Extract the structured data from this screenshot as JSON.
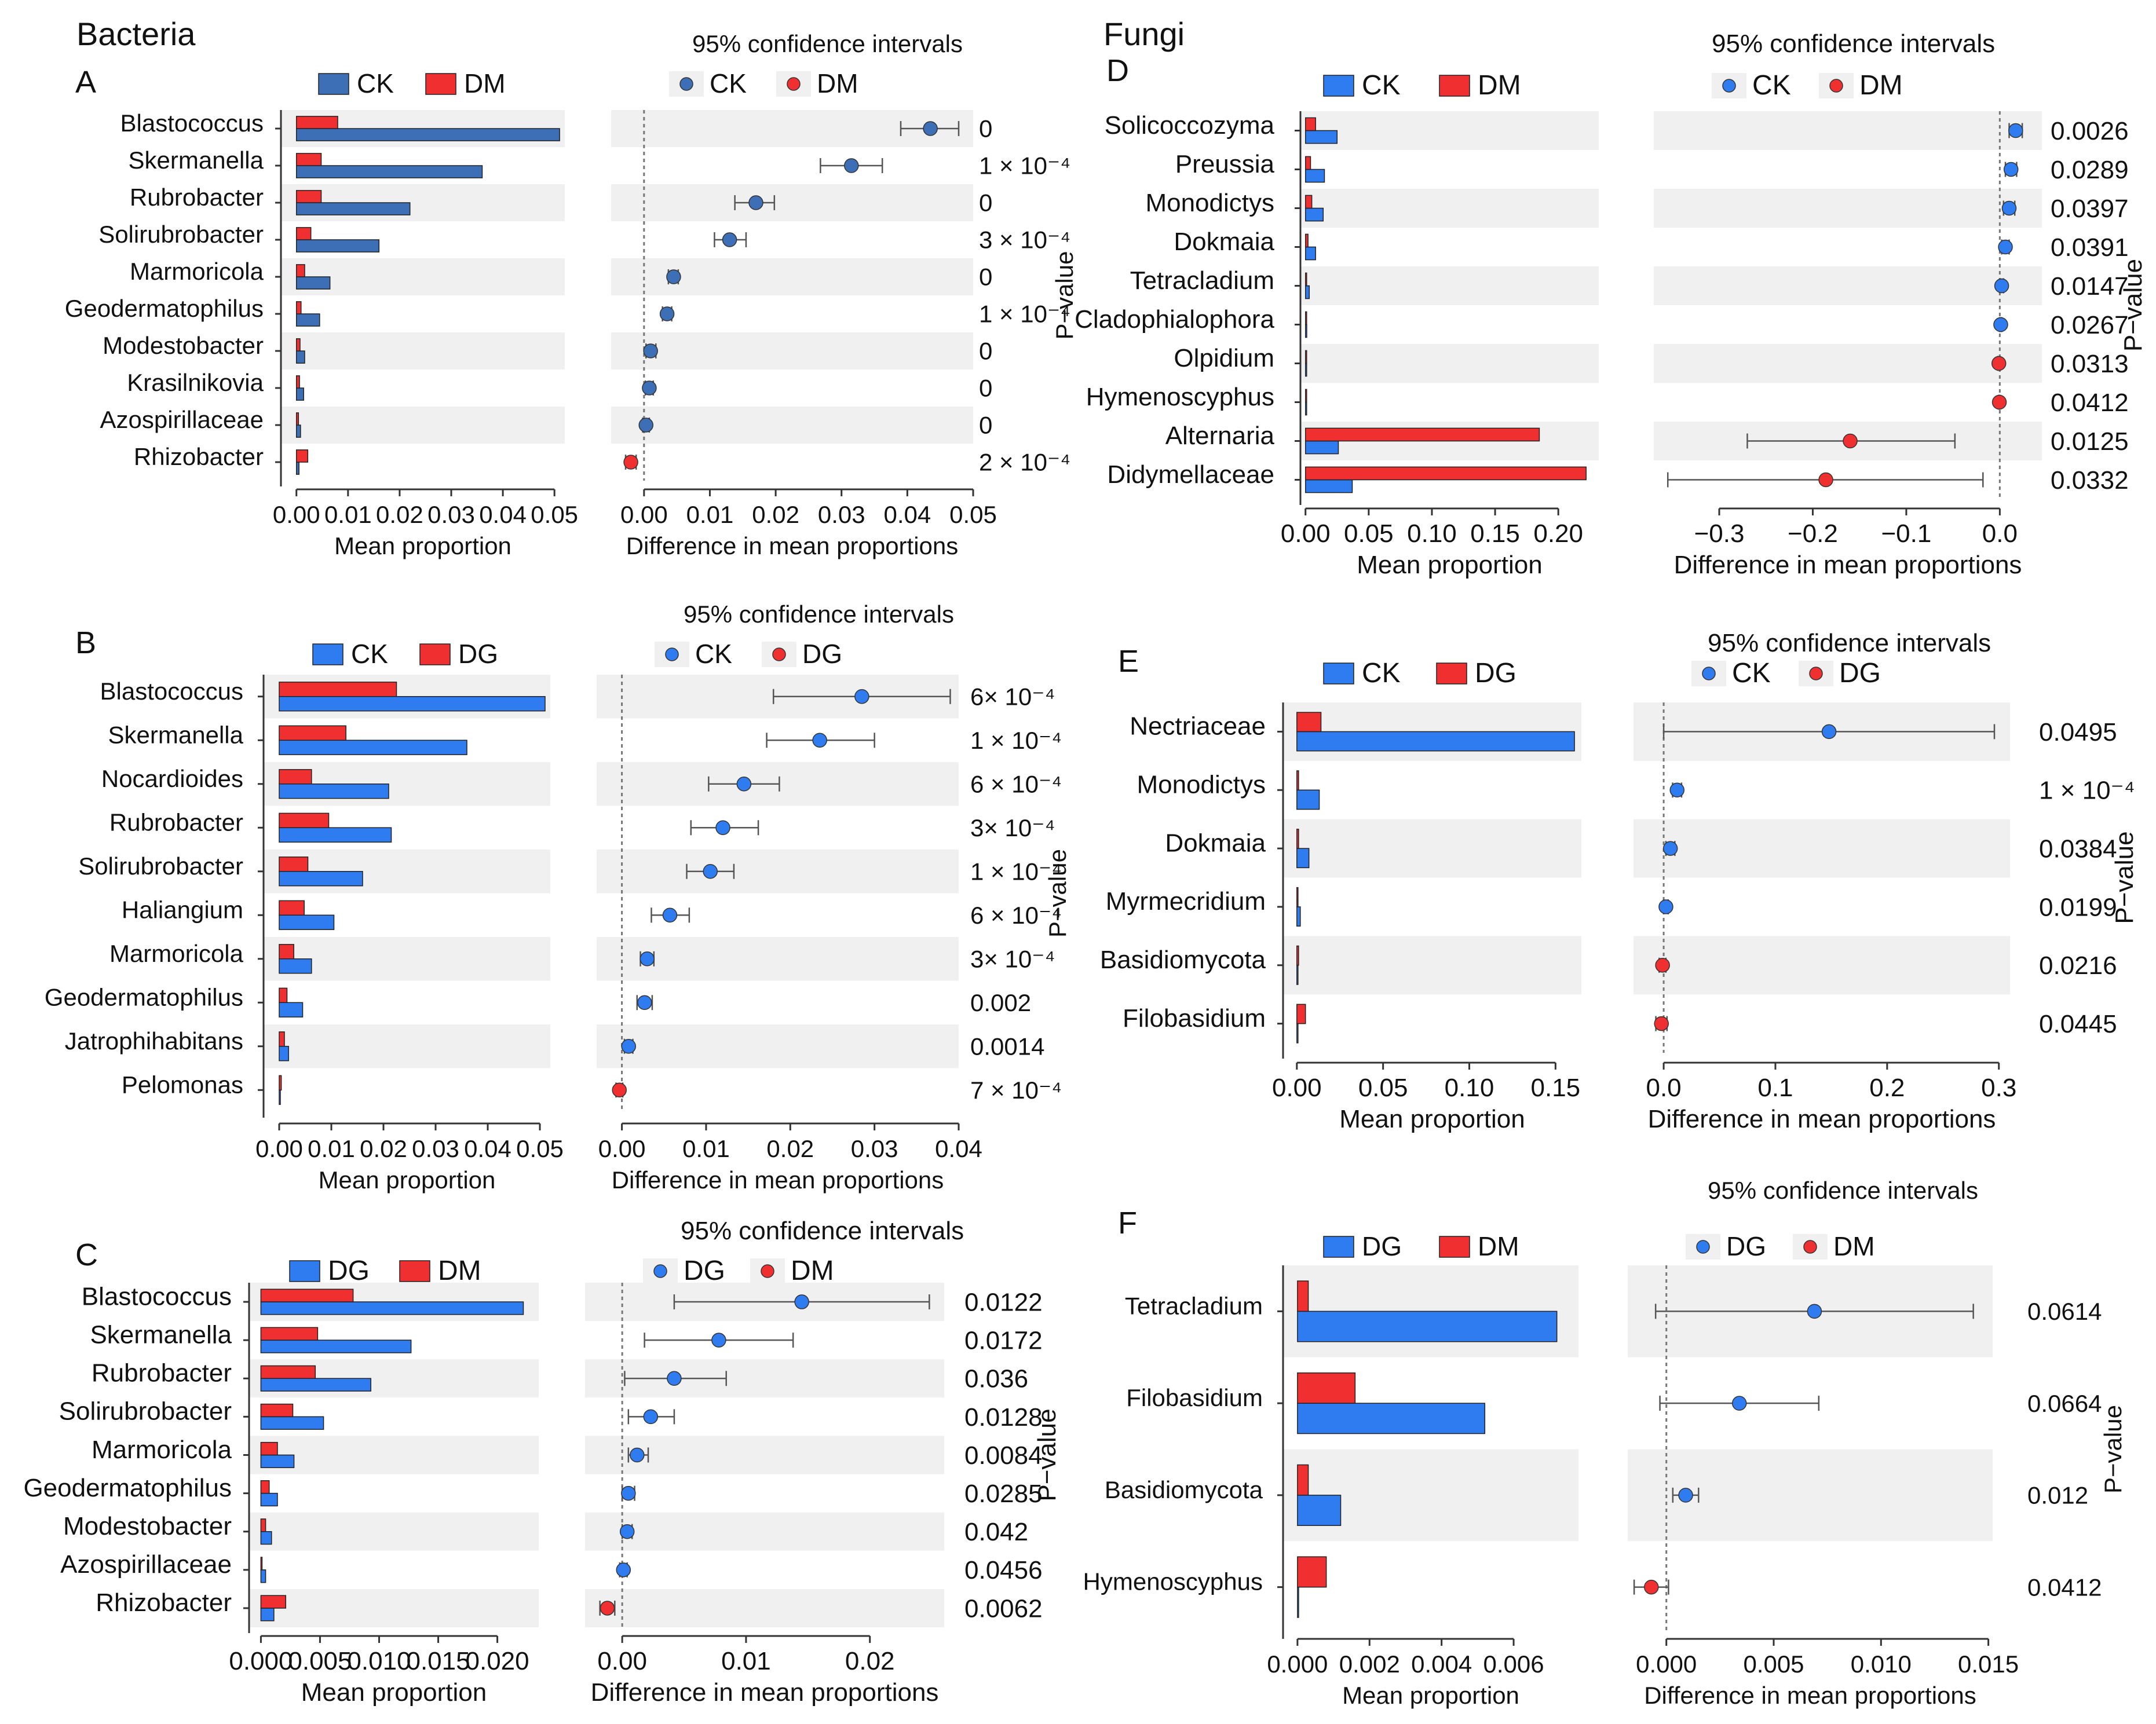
{
  "figure": {
    "left_title": "Bacteria",
    "right_title": "Fungi"
  },
  "colors": {
    "ck_dark": "#3d6fb6",
    "blue": "#2f7cf0",
    "red": "#f03030",
    "stripe": "#f0f0f0",
    "grid": "#888888"
  },
  "chart_data": [
    {
      "panel": "A",
      "type": "bar",
      "ci_type": "scatter",
      "legend": [
        "CK",
        "DM"
      ],
      "series_colors": [
        "#3d6fb6",
        "#f03030"
      ],
      "ci_title": "95% confidence intervals",
      "xlabel": "Mean proportion",
      "ci_xlabel": "Difference in mean proportions",
      "pvalue_label": "P−value",
      "categories": [
        "Blastococcus",
        "Skermanella",
        "Rubrobacter",
        "Solirubrobacter",
        "Marmoricola",
        "Geodermatophilus",
        "Modestobacter",
        "Krasilnikovia",
        "Azospirillaceae",
        "Rhizobacter"
      ],
      "series": [
        {
          "name": "CK",
          "values": [
            0.051,
            0.036,
            0.022,
            0.016,
            0.0065,
            0.0045,
            0.0016,
            0.0014,
            0.0008,
            0.0005
          ]
        },
        {
          "name": "DM",
          "values": [
            0.008,
            0.0048,
            0.0048,
            0.0028,
            0.0016,
            0.0009,
            0.0007,
            0.0006,
            0.0004,
            0.0022
          ]
        }
      ],
      "xlim": [
        -0.003,
        0.052
      ],
      "xticks": [
        0,
        0.01,
        0.02,
        0.03,
        0.04,
        0.05
      ],
      "xtick_labels": [
        "0.00",
        "0.01",
        "0.02",
        "0.03",
        "0.04",
        "0.05"
      ],
      "ci_diff": [
        0.0435,
        0.0315,
        0.017,
        0.013,
        0.0045,
        0.0035,
        0.001,
        0.0008,
        0.0003,
        -0.002
      ],
      "ci_low": [
        0.039,
        0.0268,
        0.0138,
        0.0107,
        0.0037,
        0.0028,
        0.0003,
        0.0002,
        -0.0002,
        -0.0028
      ],
      "ci_high": [
        0.0478,
        0.0362,
        0.0198,
        0.0155,
        0.0052,
        0.0042,
        0.0018,
        0.0014,
        0.0008,
        -0.0012
      ],
      "ci_xlim": [
        -0.005,
        0.05
      ],
      "ci_xticks": [
        0,
        0.01,
        0.02,
        0.03,
        0.04,
        0.05
      ],
      "ci_xtick_labels": [
        "0.00",
        "0.01",
        "0.02",
        "0.03",
        "0.04",
        "0.05"
      ],
      "pvalues": [
        "0",
        "1 × 10⁻⁴",
        "0",
        "3 × 10⁻⁴",
        "0",
        "1 × 10⁻⁴",
        "0",
        "0",
        "0",
        "2 × 10⁻⁴"
      ]
    },
    {
      "panel": "B",
      "type": "bar",
      "ci_type": "scatter",
      "legend": [
        "CK",
        "DG"
      ],
      "series_colors": [
        "#2f7cf0",
        "#f03030"
      ],
      "ci_title": "95% confidence intervals",
      "xlabel": "Mean proportion",
      "ci_xlabel": "Difference in mean proportions",
      "pvalue_label": "P−value",
      "categories": [
        "Blastococcus",
        "Skermanella",
        "Nocardioides",
        "Rubrobacter",
        "Solirubrobacter",
        "Haliangium",
        "Marmoricola",
        "Geodermatophilus",
        "Jatrophihabitans",
        "Pelomonas"
      ],
      "series": [
        {
          "name": "CK",
          "values": [
            0.051,
            0.036,
            0.021,
            0.0215,
            0.016,
            0.0105,
            0.0062,
            0.0045,
            0.0018,
            0.0002
          ]
        },
        {
          "name": "DG",
          "values": [
            0.0225,
            0.0128,
            0.0062,
            0.0095,
            0.0055,
            0.0048,
            0.0028,
            0.0015,
            0.001,
            0.0004
          ]
        }
      ],
      "xlim": [
        -0.003,
        0.052
      ],
      "xticks": [
        0,
        0.01,
        0.02,
        0.03,
        0.04,
        0.05
      ],
      "xtick_labels": [
        "0.00",
        "0.01",
        "0.02",
        "0.03",
        "0.04",
        "0.05"
      ],
      "ci_diff": [
        0.0285,
        0.0235,
        0.0145,
        0.012,
        0.0105,
        0.0057,
        0.003,
        0.0027,
        0.0008,
        -0.0003
      ],
      "ci_low": [
        0.018,
        0.0172,
        0.0103,
        0.0082,
        0.0077,
        0.0035,
        0.0022,
        0.0018,
        0.0003,
        -0.0007
      ],
      "ci_high": [
        0.039,
        0.03,
        0.0187,
        0.0162,
        0.0133,
        0.008,
        0.0038,
        0.0036,
        0.0013,
        0.0001
      ],
      "ci_xlim": [
        -0.003,
        0.04
      ],
      "ci_xticks": [
        0,
        0.01,
        0.02,
        0.03,
        0.04
      ],
      "ci_xtick_labels": [
        "0.00",
        "0.01",
        "0.02",
        "0.03",
        "0.04"
      ],
      "pvalues": [
        "6× 10⁻⁴",
        "1 × 10⁻⁴",
        "6 × 10⁻⁴",
        "3× 10⁻⁴",
        "1 × 10⁻⁴",
        "6 × 10⁻⁴",
        "3× 10⁻⁴",
        "0.002",
        "0.0014",
        "7 × 10⁻⁴"
      ]
    },
    {
      "panel": "C",
      "type": "bar",
      "ci_type": "scatter",
      "legend": [
        "DG",
        "DM"
      ],
      "series_colors": [
        "#2f7cf0",
        "#f03030"
      ],
      "ci_title": "95% confidence intervals",
      "xlabel": "Mean proportion",
      "ci_xlabel": "Difference in mean proportions",
      "pvalue_label": "P−value",
      "categories": [
        "Blastococcus",
        "Skermanella",
        "Rubrobacter",
        "Solirubrobacter",
        "Marmoricola",
        "Geodermatophilus",
        "Modestobacter",
        "Azospirillaceae",
        "Rhizobacter"
      ],
      "series": [
        {
          "name": "DG",
          "values": [
            0.0222,
            0.0127,
            0.0093,
            0.0053,
            0.0028,
            0.0014,
            0.0009,
            0.0004,
            0.0011
          ]
        },
        {
          "name": "DM",
          "values": [
            0.0078,
            0.0048,
            0.0046,
            0.0027,
            0.0014,
            0.0007,
            0.0004,
            0.0001,
            0.0021
          ]
        }
      ],
      "xlim": [
        -0.001,
        0.0235
      ],
      "xticks": [
        0,
        0.005,
        0.01,
        0.015,
        0.02
      ],
      "xtick_labels": [
        "0.000",
        "0.005",
        "0.010",
        "0.015",
        "0.020"
      ],
      "ci_diff": [
        0.0145,
        0.0078,
        0.0042,
        0.0023,
        0.0012,
        0.0005,
        0.0004,
        0.0001,
        -0.0012
      ],
      "ci_low": [
        0.0042,
        0.0018,
        0.0002,
        0.0005,
        0.0005,
        0.0,
        0.0,
        -0.0002,
        -0.0018
      ],
      "ci_high": [
        0.0248,
        0.0138,
        0.0084,
        0.0042,
        0.0021,
        0.001,
        0.0008,
        0.0004,
        -0.0006
      ],
      "ci_xlim": [
        -0.003,
        0.026
      ],
      "ci_xticks": [
        0,
        0.01,
        0.02
      ],
      "ci_xtick_labels": [
        "0.00",
        "0.01",
        "0.02"
      ],
      "pvalues": [
        "0.0122",
        "0.0172",
        "0.036",
        "0.0128",
        "0.0084",
        "0.0285",
        "0.042",
        "0.0456",
        "0.0062"
      ]
    },
    {
      "panel": "D",
      "type": "bar",
      "ci_type": "scatter",
      "legend": [
        "CK",
        "DM"
      ],
      "series_colors": [
        "#2f7cf0",
        "#f03030"
      ],
      "ci_title": "95% confidence intervals",
      "xlabel": "Mean proportion",
      "ci_xlabel": "Difference in mean proportions",
      "pvalue_label": "P−value",
      "categories": [
        "Solicoccozyma",
        "Preussia",
        "Monodictys",
        "Dokmaia",
        "Tetracladium",
        "Cladophialophora",
        "Olpidium",
        "Hymenoscyphus",
        "Alternaria",
        "Didymellaceae"
      ],
      "series": [
        {
          "name": "CK",
          "values": [
            0.025,
            0.015,
            0.014,
            0.008,
            0.003,
            0.001,
            0.0008,
            0.0005,
            0.026,
            0.037
          ]
        },
        {
          "name": "DM",
          "values": [
            0.008,
            0.004,
            0.005,
            0.002,
            0.0005,
            0.0003,
            0.0005,
            0.0003,
            0.185,
            0.222
          ]
        }
      ],
      "xlim": [
        -0.004,
        0.232
      ],
      "xticks": [
        0,
        0.05,
        0.1,
        0.15,
        0.2
      ],
      "xtick_labels": [
        "0.00",
        "0.05",
        "0.10",
        "0.15",
        "0.20"
      ],
      "ci_diff": [
        0.017,
        0.012,
        0.01,
        0.006,
        0.002,
        0.001,
        -0.001,
        -0.0005,
        -0.16,
        -0.186
      ],
      "ci_low": [
        0.01,
        0.006,
        0.004,
        0.002,
        0.0,
        0.0,
        -0.002,
        -0.001,
        -0.27,
        -0.355
      ],
      "ci_high": [
        0.024,
        0.018,
        0.016,
        0.01,
        0.004,
        0.002,
        0.0,
        0.0,
        -0.048,
        -0.018
      ],
      "ci_xlim": [
        -0.37,
        0.045
      ],
      "ci_xticks": [
        -0.3,
        -0.2,
        -0.1,
        0
      ],
      "ci_xtick_labels": [
        "−0.3",
        "−0.2",
        "−0.1",
        "0.0"
      ],
      "pvalues": [
        "0.0026",
        "0.0289",
        "0.0397",
        "0.0391",
        "0.0147",
        "0.0267",
        "0.0313",
        "0.0412",
        "0.0125",
        "0.0332"
      ]
    },
    {
      "panel": "E",
      "type": "bar",
      "ci_type": "scatter",
      "legend": [
        "CK",
        "DG"
      ],
      "series_colors": [
        "#2f7cf0",
        "#f03030"
      ],
      "ci_title": "95% confidence intervals",
      "xlabel": "Mean proportion",
      "ci_xlabel": "Difference in mean proportions",
      "pvalue_label": "P−value",
      "categories": [
        "Nectriaceae",
        "Monodictys",
        "Dokmaia",
        "Myrmecridium",
        "Basidiomycota",
        "Filobasidium"
      ],
      "series": [
        {
          "name": "CK",
          "values": [
            0.161,
            0.013,
            0.007,
            0.002,
            0.0005,
            0.0003
          ]
        },
        {
          "name": "DG",
          "values": [
            0.014,
            0.001,
            0.001,
            0.0003,
            0.001,
            0.005
          ]
        }
      ],
      "xlim": [
        -0.008,
        0.165
      ],
      "xticks": [
        0,
        0.05,
        0.1,
        0.15
      ],
      "xtick_labels": [
        "0.00",
        "0.05",
        "0.10",
        "0.15"
      ],
      "ci_diff": [
        0.148,
        0.012,
        0.006,
        0.002,
        -0.001,
        -0.002
      ],
      "ci_low": [
        0.0,
        0.008,
        0.002,
        0.0,
        -0.004,
        -0.007
      ],
      "ci_high": [
        0.296,
        0.016,
        0.01,
        0.004,
        0.002,
        0.003
      ],
      "ci_xlim": [
        -0.027,
        0.31
      ],
      "ci_xticks": [
        0,
        0.1,
        0.2,
        0.3
      ],
      "ci_xtick_labels": [
        "0.0",
        "0.1",
        "0.2",
        "0.3"
      ],
      "pvalues": [
        "0.0495",
        "1 × 10⁻⁴",
        "0.0384",
        "0.0199",
        "0.0216",
        "0.0445"
      ]
    },
    {
      "panel": "F",
      "type": "bar",
      "ci_type": "scatter",
      "legend": [
        "DG",
        "DM"
      ],
      "series_colors": [
        "#2f7cf0",
        "#f03030"
      ],
      "ci_title": "95% confidence intervals",
      "xlabel": "Mean proportion",
      "ci_xlabel": "Difference in mean proportions",
      "pvalue_label": "P−value",
      "categories": [
        "Tetracladium",
        "Filobasidium",
        "Basidiomycota",
        "Hymenoscyphus"
      ],
      "series": [
        {
          "name": "DG",
          "values": [
            0.0072,
            0.0052,
            0.0012,
            0.0
          ]
        },
        {
          "name": "DM",
          "values": [
            0.0003,
            0.0016,
            0.0003,
            0.0008
          ]
        }
      ],
      "xlim": [
        -0.0004,
        0.0078
      ],
      "xticks": [
        0,
        0.002,
        0.004,
        0.006
      ],
      "xtick_labels": [
        "0.000",
        "0.002",
        "0.004",
        "0.006"
      ],
      "ci_diff": [
        0.0069,
        0.0034,
        0.0009,
        -0.0007
      ],
      "ci_low": [
        -0.0005,
        -0.0003,
        0.0003,
        -0.0015
      ],
      "ci_high": [
        0.0143,
        0.0071,
        0.0015,
        0.0001
      ],
      "ci_xlim": [
        -0.0018,
        0.0152
      ],
      "ci_xticks": [
        0,
        0.005,
        0.01,
        0.015
      ],
      "ci_xtick_labels": [
        "0.000",
        "0.005",
        "0.010",
        "0.015"
      ],
      "pvalues": [
        "0.0614",
        "0.0664",
        "0.012",
        "0.0412"
      ]
    }
  ]
}
